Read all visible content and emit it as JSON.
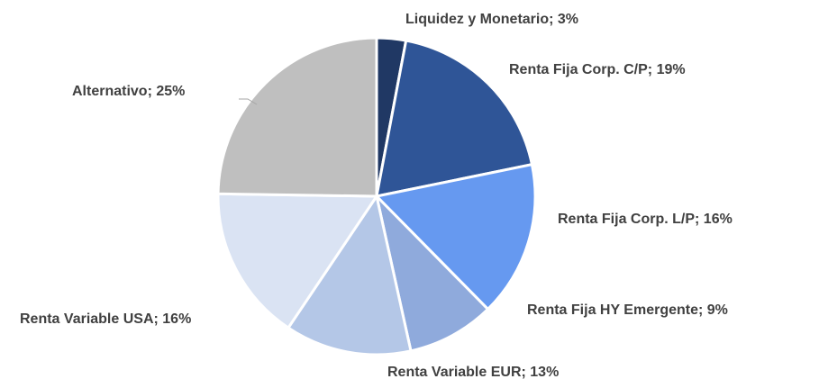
{
  "chart_data": {
    "type": "pie",
    "categories": [
      "Liquidez y Monetario",
      "Renta Fija Corp. C/P",
      "Renta Fija Corp. L/P",
      "Renta Fija HY Emergente",
      "Renta Variable EUR",
      "Renta Variable USA",
      "Alternativo"
    ],
    "values": [
      3,
      19,
      16,
      9,
      13,
      16,
      25
    ],
    "value_labels": [
      "3%",
      "19%",
      "16%",
      "9%",
      "13%",
      "16%",
      "25%"
    ],
    "label_separator": "; ",
    "colors": [
      "#203864",
      "#2f5597",
      "#6699f0",
      "#8faadc",
      "#b4c7e7",
      "#dae3f3",
      "#bfbfbf"
    ]
  }
}
